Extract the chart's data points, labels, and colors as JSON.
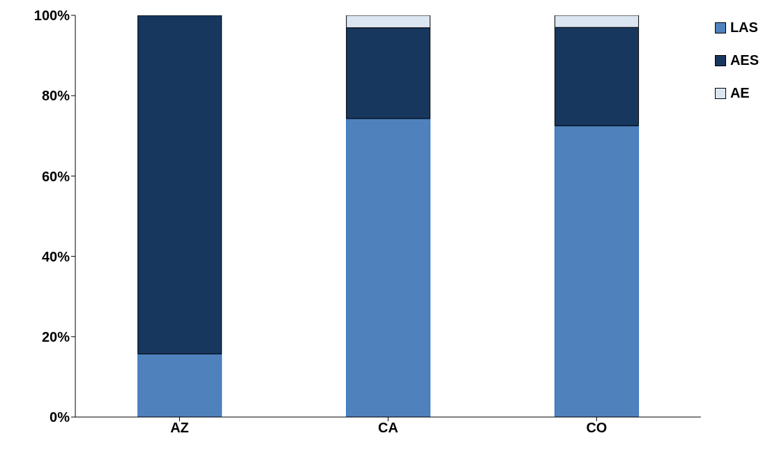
{
  "chart_data": {
    "type": "bar",
    "stacked": true,
    "categories": [
      "AZ",
      "CA",
      "CO"
    ],
    "series": [
      {
        "name": "LAS",
        "color": "#4f81bd",
        "values": [
          15.7,
          74.3,
          72.5
        ]
      },
      {
        "name": "AES",
        "color": "#17375e",
        "values": [
          84.3,
          22.6,
          24.5
        ]
      },
      {
        "name": "AE",
        "color": "#dce6f2",
        "values": [
          0,
          3.1,
          3.0
        ]
      }
    ],
    "ylim": [
      0,
      100
    ],
    "yticks": [
      {
        "value": 0,
        "label": "0%"
      },
      {
        "value": 20,
        "label": "20%"
      },
      {
        "value": 40,
        "label": "40%"
      },
      {
        "value": 60,
        "label": "60%"
      },
      {
        "value": 80,
        "label": "80%"
      },
      {
        "value": 100,
        "label": "100%"
      }
    ],
    "grid": false,
    "legend": "right"
  }
}
